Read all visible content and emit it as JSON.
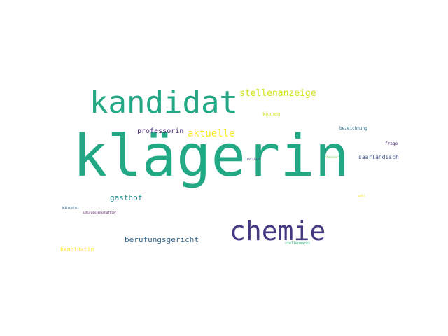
{
  "word_cloud": {
    "words": [
      {
        "text": "klägerin",
        "color": "#22a884"
      },
      {
        "text": "kandidat",
        "color": "#22a884"
      },
      {
        "text": "chemie",
        "color": "#443983"
      },
      {
        "text": "stellenanzeige",
        "color": "#d2e21b"
      },
      {
        "text": "aktuelle",
        "color": "#fde725"
      },
      {
        "text": "professorin",
        "color": "#482878"
      },
      {
        "text": "berufungsgericht",
        "color": "#31688e"
      },
      {
        "text": "gasthof",
        "color": "#21918c"
      },
      {
        "text": "saarländisch",
        "color": "#3b528b"
      },
      {
        "text": "kandidatin",
        "color": "#fde725"
      },
      {
        "text": "können",
        "color": "#d2e21b"
      },
      {
        "text": "bezeichnung",
        "color": "#2c728e"
      },
      {
        "text": "frage",
        "color": "#482878"
      },
      {
        "text": "stellenmarkt",
        "color": "#35b779"
      },
      {
        "text": "chemiker",
        "color": "#7ad151"
      },
      {
        "text": "persisch",
        "color": "#46327e"
      },
      {
        "text": "wahl",
        "color": "#fde725"
      },
      {
        "text": "winzerei",
        "color": "#31688e"
      },
      {
        "text": "naturwissenschaftler",
        "color": "#440154"
      }
    ]
  }
}
